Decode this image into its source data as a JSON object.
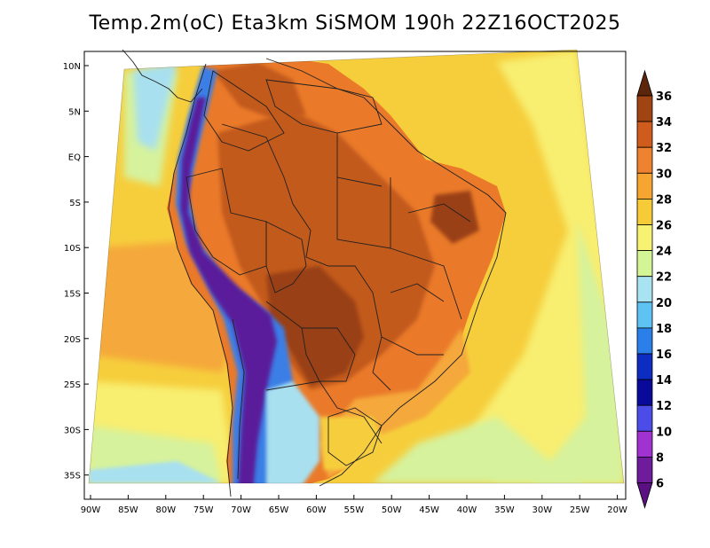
{
  "title": "Temp.2m(oC) Eta3km SiSMOM 190h 22Z16OCT2025",
  "lat_labels": [
    "10N",
    "5N",
    "EQ",
    "5S",
    "10S",
    "15S",
    "20S",
    "25S",
    "30S",
    "35S"
  ],
  "lon_labels": [
    "90W",
    "85W",
    "80W",
    "75W",
    "70W",
    "65W",
    "60W",
    "55W",
    "50W",
    "45W",
    "40W",
    "35W",
    "30W",
    "25W",
    "20W"
  ],
  "colorbar": {
    "labels": [
      "36",
      "34",
      "32",
      "30",
      "28",
      "26",
      "24",
      "22",
      "20",
      "18",
      "16",
      "14",
      "12",
      "10",
      "8",
      "6"
    ],
    "colors": [
      "#6e2c0e",
      "#a14414",
      "#cf5c1c",
      "#ee8230",
      "#f6a531",
      "#f6cb37",
      "#f7f271",
      "#d3f595",
      "#a9e2f0",
      "#5ec3f2",
      "#2a80e8",
      "#0c2cc2",
      "#0a0a9a",
      "#4c4ce8",
      "#a032d2",
      "#6e1c9c"
    ],
    "top_arrow_color": "#5c260c",
    "bottom_arrow_color": "#5a1082"
  },
  "palette": {
    "ocean_warm": "#f6ce3c",
    "ocean_hot": "#f5a83a",
    "ocean_mild": "#f8ee70",
    "ocean_cool": "#d6f29c",
    "ocean_cold": "#a8e0ef",
    "land_hot": "#ea7a2a",
    "land_very_hot": "#c25a1e",
    "land_extreme": "#9a4012",
    "andes_cold": "#5a1a9a",
    "andes_cool": "#3a7ee6",
    "border": "#202020"
  }
}
